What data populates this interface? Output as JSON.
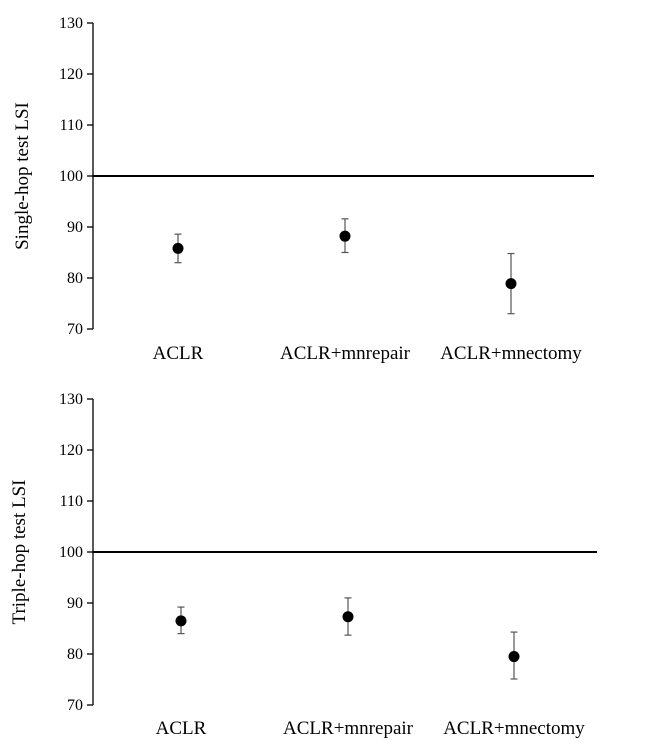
{
  "chart_data": [
    {
      "type": "scatter",
      "title": "",
      "xlabel": "",
      "ylabel": "Single-hop test LSI",
      "categories": [
        "ACLR",
        "ACLR+mnrepair",
        "ACLR+mnectomy"
      ],
      "values": [
        85.8,
        88.2,
        78.9
      ],
      "error_low": [
        83.0,
        85.0,
        73.0
      ],
      "error_high": [
        88.6,
        91.6,
        84.8
      ],
      "reference_line": 100,
      "ylim": [
        70,
        130
      ],
      "yticks": [
        "70",
        "80",
        "90",
        "100",
        "110",
        "120",
        "130"
      ],
      "grid": false,
      "legend": "none"
    },
    {
      "type": "scatter",
      "title": "",
      "xlabel": "",
      "ylabel": "Triple-hop test LSI",
      "categories": [
        "ACLR",
        "ACLR+mnrepair",
        "ACLR+mnectomy"
      ],
      "values": [
        86.5,
        87.3,
        79.5
      ],
      "error_low": [
        84.0,
        83.7,
        75.1
      ],
      "error_high": [
        89.2,
        91.0,
        84.3
      ],
      "reference_line": 100,
      "ylim": [
        70,
        130
      ],
      "yticks": [
        "70",
        "80",
        "90",
        "100",
        "110",
        "120",
        "130"
      ],
      "grid": false,
      "legend": "none"
    }
  ]
}
